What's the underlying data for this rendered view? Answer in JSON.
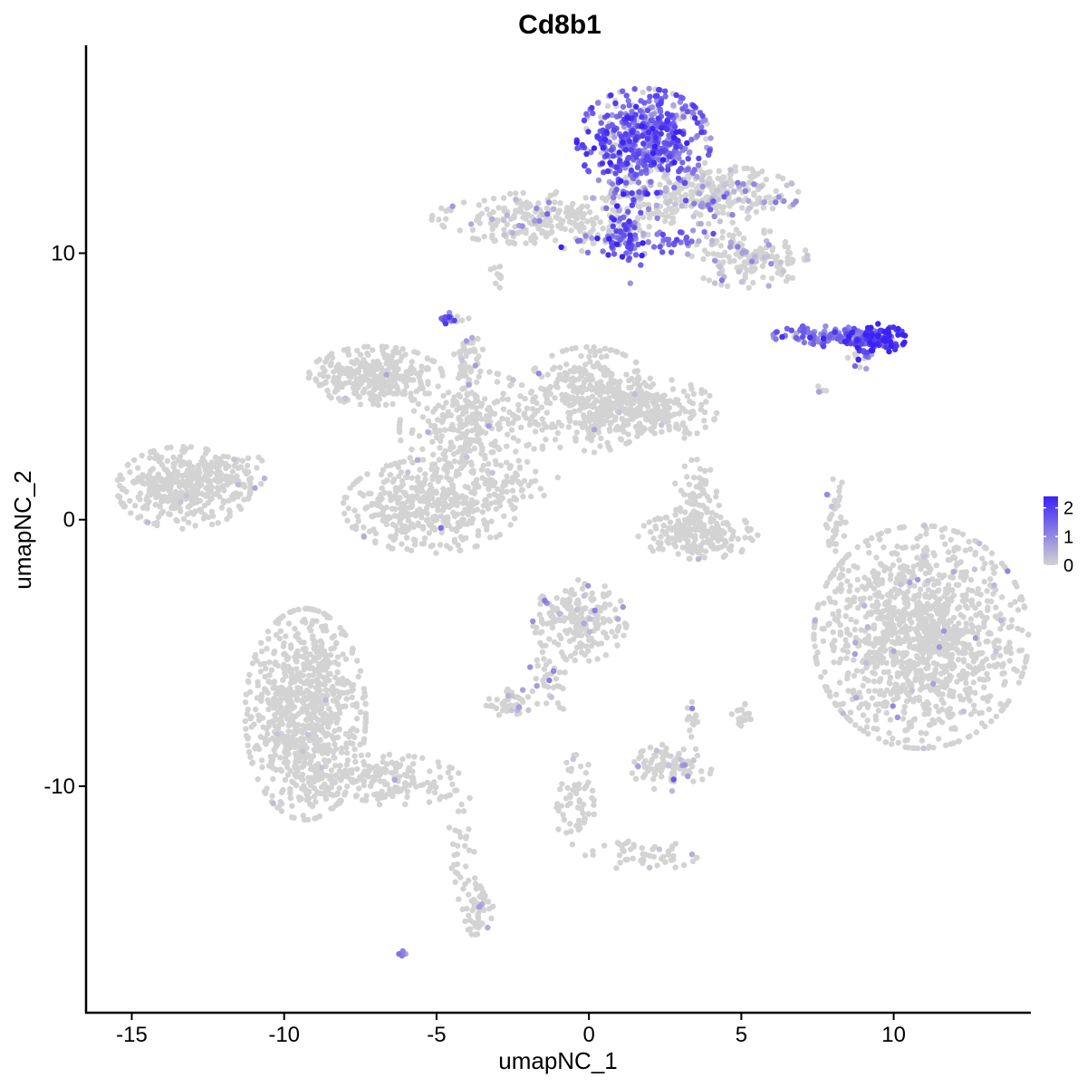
{
  "chart_data": {
    "type": "scatter",
    "title": "Cd8b1",
    "xlabel": "umapNC_1",
    "ylabel": "umapNC_2",
    "xlim": [
      -16.5,
      14.5
    ],
    "ylim": [
      -18.5,
      17.8
    ],
    "xticks": [
      -15,
      -10,
      -5,
      0,
      5,
      10
    ],
    "xtick_labels": [
      "-15",
      "-10",
      "-5",
      "0",
      "5",
      "10"
    ],
    "yticks": [
      -10,
      0,
      10
    ],
    "ytick_labels": [
      "-10",
      "0",
      "10"
    ],
    "grid": false,
    "color_scale": {
      "low_color": "#d3d3d3",
      "high_color": "#3b22f5",
      "min": 0,
      "max": 2.4,
      "ticks": [
        0,
        1,
        2
      ],
      "tick_labels": [
        "0",
        "1",
        "2"
      ],
      "legend_position": "right"
    },
    "clusters": [
      {
        "cx": 1.8,
        "cy": 14.2,
        "sx": 1.0,
        "sy": 0.9,
        "n": 520,
        "expr_mean": 1.5,
        "expr_frac": 0.85
      },
      {
        "cx": 3.8,
        "cy": 12.2,
        "sx": 1.4,
        "sy": 0.5,
        "n": 320,
        "expr_mean": 0.5,
        "expr_frac": 0.25
      },
      {
        "cx": -1.2,
        "cy": 11.3,
        "sx": 1.8,
        "sy": 0.45,
        "n": 280,
        "expr_mean": 0.4,
        "expr_frac": 0.12
      },
      {
        "cx": 5.2,
        "cy": 9.8,
        "sx": 0.9,
        "sy": 0.5,
        "n": 160,
        "expr_mean": 0.5,
        "expr_frac": 0.2
      },
      {
        "cx": 1.2,
        "cy": 11.0,
        "sx": 0.3,
        "sy": 1.0,
        "n": 60,
        "expr_mean": 1.6,
        "expr_frac": 0.9
      },
      {
        "cx": 1.8,
        "cy": 10.4,
        "sx": 1.3,
        "sy": 0.25,
        "n": 70,
        "expr_mean": 1.5,
        "expr_frac": 0.85
      },
      {
        "cx": 9.4,
        "cy": 6.8,
        "sx": 0.45,
        "sy": 0.25,
        "n": 120,
        "expr_mean": 2.0,
        "expr_frac": 0.95
      },
      {
        "cx": 7.8,
        "cy": 6.9,
        "sx": 0.8,
        "sy": 0.18,
        "n": 110,
        "expr_mean": 1.3,
        "expr_frac": 0.9
      },
      {
        "cx": 8.9,
        "cy": 6.0,
        "sx": 0.25,
        "sy": 0.2,
        "n": 15,
        "expr_mean": 1.2,
        "expr_frac": 0.8
      },
      {
        "cx": -4.6,
        "cy": 7.5,
        "sx": 0.15,
        "sy": 0.12,
        "n": 20,
        "expr_mean": 1.2,
        "expr_frac": 0.8
      },
      {
        "cx": -7.0,
        "cy": 5.4,
        "sx": 1.0,
        "sy": 0.5,
        "n": 320,
        "expr_mean": 0.3,
        "expr_frac": 0.01
      },
      {
        "cx": 0.0,
        "cy": 4.5,
        "sx": 1.0,
        "sy": 0.9,
        "n": 330,
        "expr_mean": 0.3,
        "expr_frac": 0.01
      },
      {
        "cx": 2.0,
        "cy": 4.1,
        "sx": 1.0,
        "sy": 0.55,
        "n": 230,
        "expr_mean": 0.3,
        "expr_frac": 0.01
      },
      {
        "cx": -3.8,
        "cy": 3.4,
        "sx": 1.1,
        "sy": 1.0,
        "n": 280,
        "expr_mean": 0.3,
        "expr_frac": 0.01
      },
      {
        "cx": -5.2,
        "cy": 0.5,
        "sx": 1.3,
        "sy": 0.8,
        "n": 420,
        "expr_mean": 0.3,
        "expr_frac": 0.01
      },
      {
        "cx": -13.3,
        "cy": 1.2,
        "sx": 1.0,
        "sy": 0.7,
        "n": 380,
        "expr_mean": 0.3,
        "expr_frac": 0.01
      },
      {
        "cx": -11.7,
        "cy": 1.8,
        "sx": 0.5,
        "sy": 0.4,
        "n": 50,
        "expr_mean": 0.3,
        "expr_frac": 0.05
      },
      {
        "cx": 3.5,
        "cy": 0.5,
        "sx": 0.35,
        "sy": 0.8,
        "n": 90,
        "expr_mean": 0.3,
        "expr_frac": 0.01
      },
      {
        "cx": 3.6,
        "cy": -0.6,
        "sx": 0.9,
        "sy": 0.4,
        "n": 160,
        "expr_mean": 0.3,
        "expr_frac": 0.01
      },
      {
        "cx": 8.1,
        "cy": 0.2,
        "sx": 0.15,
        "sy": 0.7,
        "n": 40,
        "expr_mean": 0.3,
        "expr_frac": 0.02
      },
      {
        "cx": 10.9,
        "cy": -4.4,
        "sx": 1.6,
        "sy": 1.9,
        "n": 1300,
        "expr_mean": 0.4,
        "expr_frac": 0.02
      },
      {
        "cx": -9.3,
        "cy": -7.3,
        "sx": 0.9,
        "sy": 1.8,
        "n": 820,
        "expr_mean": 0.3,
        "expr_frac": 0.01
      },
      {
        "cx": -6.8,
        "cy": -9.8,
        "sx": 1.2,
        "sy": 0.45,
        "n": 180,
        "expr_mean": 0.3,
        "expr_frac": 0.01
      },
      {
        "cx": -0.3,
        "cy": -3.8,
        "sx": 0.7,
        "sy": 0.7,
        "n": 200,
        "expr_mean": 0.5,
        "expr_frac": 0.05
      },
      {
        "cx": -1.3,
        "cy": -6.0,
        "sx": 0.3,
        "sy": 0.7,
        "n": 40,
        "expr_mean": 0.4,
        "expr_frac": 0.05
      },
      {
        "cx": -2.5,
        "cy": -6.9,
        "sx": 0.4,
        "sy": 0.25,
        "n": 40,
        "expr_mean": 0.6,
        "expr_frac": 0.15
      },
      {
        "cx": 2.7,
        "cy": -9.3,
        "sx": 0.6,
        "sy": 0.4,
        "n": 100,
        "expr_mean": 0.6,
        "expr_frac": 0.1
      },
      {
        "cx": 3.4,
        "cy": -7.5,
        "sx": 0.1,
        "sy": 0.3,
        "n": 15,
        "expr_mean": 0.3,
        "expr_frac": 0.05
      },
      {
        "cx": 5.0,
        "cy": -7.3,
        "sx": 0.2,
        "sy": 0.25,
        "n": 20,
        "expr_mean": 0.3,
        "expr_frac": 0.01
      },
      {
        "cx": -3.7,
        "cy": -14.5,
        "sx": 0.25,
        "sy": 0.5,
        "n": 60,
        "expr_mean": 0.5,
        "expr_frac": 0.05
      },
      {
        "cx": -4.2,
        "cy": -12.0,
        "sx": 0.2,
        "sy": 1.3,
        "n": 30,
        "expr_mean": 0.3,
        "expr_frac": 0.01
      },
      {
        "cx": -0.4,
        "cy": -10.8,
        "sx": 0.3,
        "sy": 0.9,
        "n": 60,
        "expr_mean": 0.3,
        "expr_frac": 0.02
      },
      {
        "cx": 1.8,
        "cy": -12.6,
        "sx": 0.8,
        "sy": 0.25,
        "n": 50,
        "expr_mean": 0.3,
        "expr_frac": 0.03
      },
      {
        "cx": -2.5,
        "cy": 1.4,
        "sx": 0.7,
        "sy": 0.3,
        "n": 40,
        "expr_mean": 0.3,
        "expr_frac": 0.01
      },
      {
        "cx": -4.0,
        "cy": 5.8,
        "sx": 0.25,
        "sy": 0.8,
        "n": 60,
        "expr_mean": 0.4,
        "expr_frac": 0.03
      },
      {
        "cx": -3.0,
        "cy": 9.1,
        "sx": 0.12,
        "sy": 0.25,
        "n": 10,
        "expr_mean": 0.3,
        "expr_frac": 0.0
      },
      {
        "cx": -6.1,
        "cy": -16.3,
        "sx": 0.06,
        "sy": 0.06,
        "n": 5,
        "expr_mean": 1.0,
        "expr_frac": 0.6
      },
      {
        "cx": 7.6,
        "cy": 4.8,
        "sx": 0.1,
        "sy": 0.1,
        "n": 6,
        "expr_mean": 0.6,
        "expr_frac": 0.5
      }
    ]
  }
}
